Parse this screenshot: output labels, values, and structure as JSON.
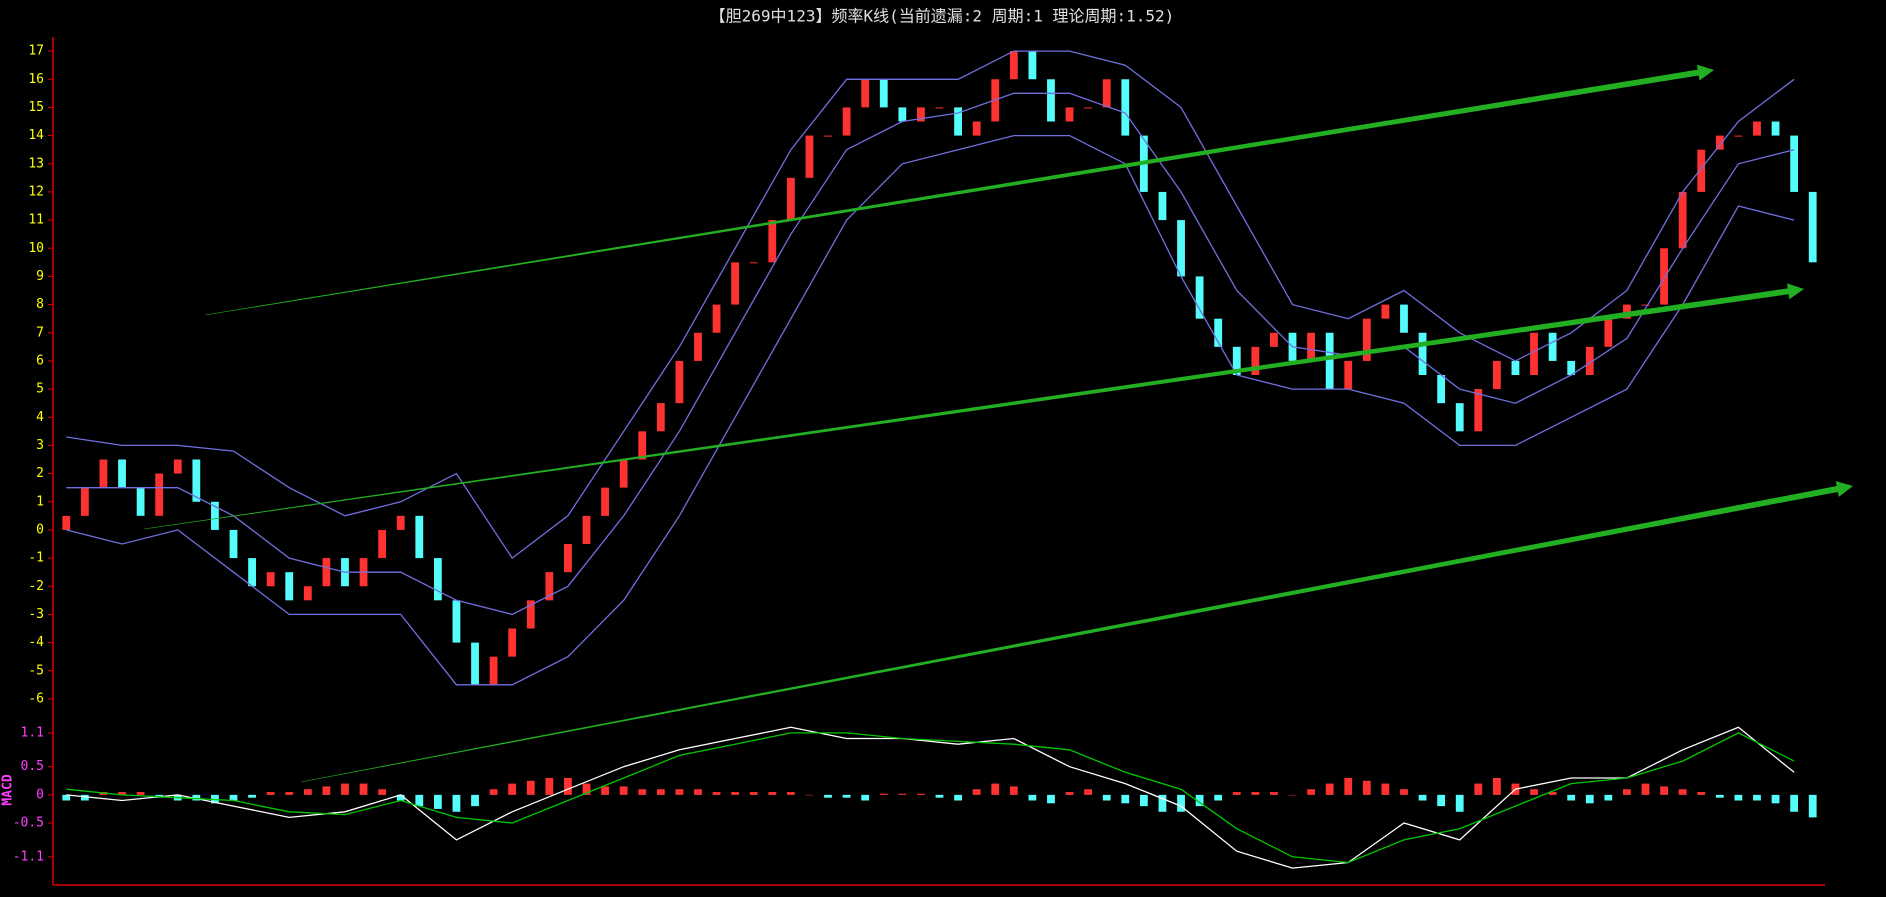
{
  "chart_data": [
    {
      "type": "candlestick",
      "title": "【胆269中123】频率K线(当前遗漏:2 周期:1 理论周期:1.52)",
      "up_color": "#ff3232",
      "down_color": "#54fcfc",
      "open": [
        0,
        0.5,
        1.5,
        2.5,
        1.5,
        0.5,
        2,
        2.5,
        1,
        0,
        -1,
        -2,
        -1.5,
        -2.5,
        -2,
        -1,
        -2,
        -1,
        0,
        0.5,
        -1,
        -2.5,
        -4,
        -5.5,
        -4.5,
        -3.5,
        -2.5,
        -1.5,
        -0.5,
        0.5,
        1.5,
        2.5,
        3.5,
        4.5,
        6,
        7,
        8,
        9.5,
        9.5,
        11,
        12.5,
        14,
        14,
        15,
        16,
        15,
        14.5,
        15,
        15,
        14,
        14.5,
        16,
        17,
        16,
        14.5,
        15,
        15,
        16,
        14,
        12,
        11,
        9,
        7.5,
        6.5,
        5.5,
        6.5,
        7,
        6,
        7,
        5,
        6,
        7.5,
        8,
        7,
        5.5,
        4.5,
        3.5,
        5,
        6,
        5.5,
        7,
        6,
        5.5,
        6.5,
        7.5,
        8,
        8,
        10,
        12,
        13.5,
        14,
        14,
        14.5,
        14,
        12
      ],
      "close": [
        0.5,
        1.5,
        2.5,
        1.5,
        0.5,
        2,
        2.5,
        1,
        0,
        -1,
        -2,
        -1.5,
        -2.5,
        -2,
        -1,
        -2,
        -1,
        0,
        0.5,
        -1,
        -2.5,
        -4,
        -5.5,
        -4.5,
        -3.5,
        -2.5,
        -1.5,
        -0.5,
        0.5,
        1.5,
        2.5,
        3.5,
        4.5,
        6,
        7,
        8,
        9.5,
        9.5,
        11,
        12.5,
        14,
        14,
        15,
        16,
        15,
        14.5,
        15,
        15,
        14,
        14.5,
        16,
        17,
        16,
        14.5,
        15,
        15,
        16,
        14,
        12,
        11,
        9,
        7.5,
        6.5,
        5.5,
        6.5,
        7,
        6,
        7,
        5,
        6,
        7.5,
        8,
        7,
        5.5,
        4.5,
        3.5,
        5,
        6,
        5.5,
        7,
        6,
        5.5,
        6.5,
        7.5,
        8,
        8,
        10,
        12,
        13.5,
        14,
        14,
        14.5,
        14,
        12,
        9.5
      ],
      "overlays": [
        {
          "color": "#7070e0",
          "x": [
            0,
            3,
            6,
            9,
            12,
            15,
            18,
            21,
            24,
            27,
            30,
            33,
            36,
            39,
            42,
            45,
            48,
            51,
            54,
            57,
            60,
            63,
            66,
            69,
            72,
            75,
            78,
            81,
            84,
            87,
            90,
            93
          ],
          "values": [
            3.3,
            3,
            3,
            2.8,
            1.5,
            0.5,
            1,
            2,
            -1,
            0.5,
            3.5,
            6.5,
            10,
            13.5,
            16,
            16,
            16,
            17,
            17,
            16.5,
            15,
            11.5,
            8,
            7.5,
            8.5,
            7,
            6,
            7,
            8.5,
            12,
            14.5,
            16
          ]
        },
        {
          "color": "#7070e0",
          "x": [
            0,
            3,
            6,
            9,
            12,
            15,
            18,
            21,
            24,
            27,
            30,
            33,
            36,
            39,
            42,
            45,
            48,
            51,
            54,
            57,
            60,
            63,
            66,
            69,
            72,
            75,
            78,
            81,
            84,
            87,
            90,
            93
          ],
          "values": [
            1.5,
            1.5,
            1.5,
            0.5,
            -1,
            -1.5,
            -1.5,
            -2.5,
            -3,
            -2,
            0.5,
            3.5,
            7,
            10.5,
            13.5,
            14.5,
            14.8,
            15.5,
            15.5,
            14.8,
            12,
            8.5,
            6.5,
            6.2,
            6.5,
            5,
            4.5,
            5.5,
            6.8,
            10,
            13,
            13.5
          ]
        },
        {
          "color": "#7070e0",
          "x": [
            0,
            3,
            6,
            9,
            12,
            15,
            18,
            21,
            24,
            27,
            30,
            33,
            36,
            39,
            42,
            45,
            48,
            51,
            54,
            57,
            60,
            63,
            66,
            69,
            72,
            75,
            78,
            81,
            84,
            87,
            90,
            93
          ],
          "values": [
            0,
            -0.5,
            0,
            -1.5,
            -3,
            -3,
            -3,
            -5.5,
            -5.5,
            -4.5,
            -2.5,
            0.5,
            4,
            7.5,
            11,
            13,
            13.5,
            14,
            14,
            13,
            9,
            5.5,
            5,
            5,
            4.5,
            3,
            3,
            4,
            5,
            8,
            11.5,
            11
          ]
        }
      ],
      "ylim": [
        -6.5,
        17.5
      ],
      "yticks": [
        17,
        16,
        15,
        14,
        13,
        12,
        11,
        10,
        9,
        8,
        7,
        6,
        5,
        4,
        3,
        2,
        1,
        0,
        -1,
        -2,
        -3,
        -4,
        -5,
        -6
      ]
    },
    {
      "type": "macd",
      "title": "MACD",
      "up_color": "#ff3232",
      "down_color": "#54fcfc",
      "histogram": [
        -0.1,
        -0.1,
        0.05,
        0.05,
        0.05,
        -0.05,
        -0.1,
        -0.1,
        -0.15,
        -0.1,
        -0.05,
        0.05,
        0.05,
        0.1,
        0.15,
        0.2,
        0.2,
        0.1,
        -0.1,
        -0.2,
        -0.25,
        -0.3,
        -0.2,
        0.1,
        0.2,
        0.25,
        0.3,
        0.3,
        0.2,
        0.15,
        0.15,
        0.1,
        0.1,
        0.1,
        0.1,
        0.05,
        0.05,
        0.05,
        0.05,
        0.05,
        0,
        -0.05,
        -0.05,
        -0.1,
        0.02,
        0.02,
        0.02,
        -0.05,
        -0.1,
        0.1,
        0.2,
        0.15,
        -0.1,
        -0.15,
        0.05,
        0.1,
        -0.1,
        -0.15,
        -0.2,
        -0.3,
        -0.3,
        -0.2,
        -0.1,
        0.05,
        0.05,
        0.05,
        0,
        0.1,
        0.2,
        0.3,
        0.25,
        0.2,
        0.1,
        -0.1,
        -0.2,
        -0.3,
        0.2,
        0.3,
        0.2,
        0.1,
        0.05,
        -0.1,
        -0.15,
        -0.1,
        0.1,
        0.2,
        0.15,
        0.1,
        0.05,
        -0.05,
        -0.1,
        -0.1,
        -0.15,
        -0.3,
        -0.4
      ],
      "series": [
        {
          "color": "#ffffff",
          "x": [
            0,
            3,
            6,
            9,
            12,
            15,
            18,
            21,
            24,
            27,
            30,
            33,
            36,
            39,
            42,
            45,
            48,
            51,
            54,
            57,
            60,
            63,
            66,
            69,
            72,
            75,
            78,
            81,
            84,
            87,
            90,
            93
          ],
          "values": [
            0,
            -0.1,
            0,
            -0.2,
            -0.4,
            -0.3,
            0,
            -0.8,
            -0.3,
            0.1,
            0.5,
            0.8,
            1,
            1.2,
            1,
            1,
            0.9,
            1,
            0.5,
            0.2,
            -0.2,
            -1,
            -1.3,
            -1.2,
            -0.5,
            -0.8,
            0.1,
            0.3,
            0.3,
            0.8,
            1.2,
            0.4
          ]
        },
        {
          "color": "#00c800",
          "x": [
            0,
            3,
            6,
            9,
            12,
            15,
            18,
            21,
            24,
            27,
            30,
            33,
            36,
            39,
            42,
            45,
            48,
            51,
            54,
            57,
            60,
            63,
            66,
            69,
            72,
            75,
            78,
            81,
            84,
            87,
            90,
            93
          ],
          "values": [
            0.1,
            0,
            -0.05,
            -0.1,
            -0.3,
            -0.35,
            -0.1,
            -0.4,
            -0.5,
            -0.1,
            0.3,
            0.7,
            0.9,
            1.1,
            1.1,
            1,
            0.95,
            0.9,
            0.8,
            0.4,
            0.1,
            -0.6,
            -1.1,
            -1.2,
            -0.8,
            -0.6,
            -0.2,
            0.2,
            0.3,
            0.6,
            1.1,
            0.6
          ]
        }
      ],
      "ylim": [
        -1.6,
        1.4
      ],
      "yticks": [
        1.1,
        0.5,
        0,
        -0.5,
        -1.1
      ]
    }
  ]
}
